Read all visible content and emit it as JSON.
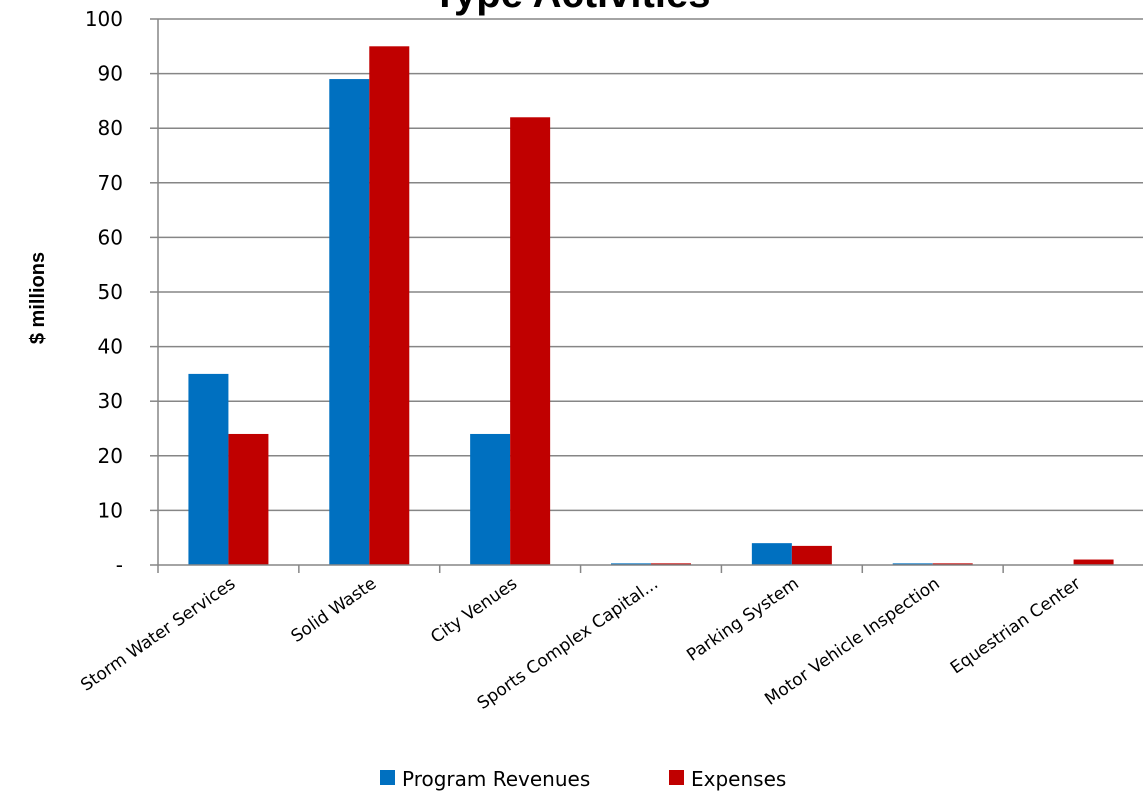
{
  "chart_data": {
    "type": "bar",
    "title": "Type Activities",
    "ylabel": "$ millions",
    "xlabel": "",
    "categories": [
      "Storm Water Services",
      "Solid Waste",
      "City Venues",
      "Sports Complex Capital...",
      "Parking System",
      "Motor Vehicle Inspection",
      "Equestrian Center"
    ],
    "series": [
      {
        "name": "Program Revenues",
        "color": "#0070c0",
        "values": [
          35,
          89,
          24,
          0.3,
          4,
          0.3,
          0
        ]
      },
      {
        "name": "Expenses",
        "color": "#c00000",
        "values": [
          24,
          95,
          82,
          0.3,
          3.5,
          0.3,
          1
        ]
      }
    ],
    "ylim": [
      0,
      100
    ],
    "yticks": [
      0,
      10,
      20,
      30,
      40,
      50,
      60,
      70,
      80,
      90,
      100
    ],
    "ytick_labels": [
      "-",
      "10",
      "20",
      "30",
      "40",
      "50",
      "60",
      "70",
      "80",
      "90",
      "100"
    ],
    "grid": true,
    "legend_position": "bottom"
  }
}
